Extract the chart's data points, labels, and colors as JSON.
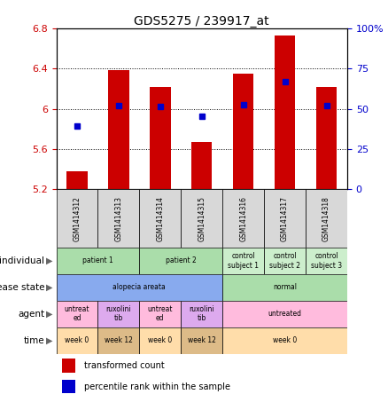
{
  "title": "GDS5275 / 239917_at",
  "samples": [
    "GSM1414312",
    "GSM1414313",
    "GSM1414314",
    "GSM1414315",
    "GSM1414316",
    "GSM1414317",
    "GSM1414318"
  ],
  "bar_values": [
    5.38,
    6.39,
    6.22,
    5.67,
    6.35,
    6.73,
    6.22
  ],
  "dot_values": [
    5.83,
    6.03,
    6.02,
    5.93,
    6.04,
    6.27,
    6.03
  ],
  "y_min": 5.2,
  "y_max": 6.8,
  "y_ticks_left": [
    5.2,
    5.6,
    6.0,
    6.4,
    6.8
  ],
  "y_ticks_right_pct": [
    0,
    25,
    50,
    75,
    100
  ],
  "y_right_labels": [
    "0",
    "25",
    "50",
    "75",
    "100%"
  ],
  "bar_color": "#cc0000",
  "dot_color": "#0000cc",
  "bg_color": "#ffffff",
  "row_labels": [
    "individual",
    "disease state",
    "agent",
    "time"
  ],
  "individual_groups": [
    {
      "label": "patient 1",
      "start": 0,
      "end": 1,
      "color": "#aaddaa"
    },
    {
      "label": "patient 2",
      "start": 2,
      "end": 3,
      "color": "#aaddaa"
    },
    {
      "label": "control\nsubject 1",
      "start": 4,
      "end": 4,
      "color": "#cceecc"
    },
    {
      "label": "control\nsubject 2",
      "start": 5,
      "end": 5,
      "color": "#cceecc"
    },
    {
      "label": "control\nsubject 3",
      "start": 6,
      "end": 6,
      "color": "#cceecc"
    }
  ],
  "disease_groups": [
    {
      "label": "alopecia areata",
      "start": 0,
      "end": 3,
      "color": "#88aaee"
    },
    {
      "label": "normal",
      "start": 4,
      "end": 6,
      "color": "#aaddaa"
    }
  ],
  "agent_groups": [
    {
      "label": "untreat\ned",
      "start": 0,
      "end": 0,
      "color": "#ffbbdd"
    },
    {
      "label": "ruxolini\ntib",
      "start": 1,
      "end": 1,
      "color": "#ddaaee"
    },
    {
      "label": "untreat\ned",
      "start": 2,
      "end": 2,
      "color": "#ffbbdd"
    },
    {
      "label": "ruxolini\ntib",
      "start": 3,
      "end": 3,
      "color": "#ddaaee"
    },
    {
      "label": "untreated",
      "start": 4,
      "end": 6,
      "color": "#ffbbdd"
    }
  ],
  "time_groups": [
    {
      "label": "week 0",
      "start": 0,
      "end": 0,
      "color": "#ffddaa"
    },
    {
      "label": "week 12",
      "start": 1,
      "end": 1,
      "color": "#ddbb88"
    },
    {
      "label": "week 0",
      "start": 2,
      "end": 2,
      "color": "#ffddaa"
    },
    {
      "label": "week 12",
      "start": 3,
      "end": 3,
      "color": "#ddbb88"
    },
    {
      "label": "week 0",
      "start": 4,
      "end": 6,
      "color": "#ffddaa"
    }
  ],
  "legend_bar_label": "transformed count",
  "legend_dot_label": "percentile rank within the sample"
}
